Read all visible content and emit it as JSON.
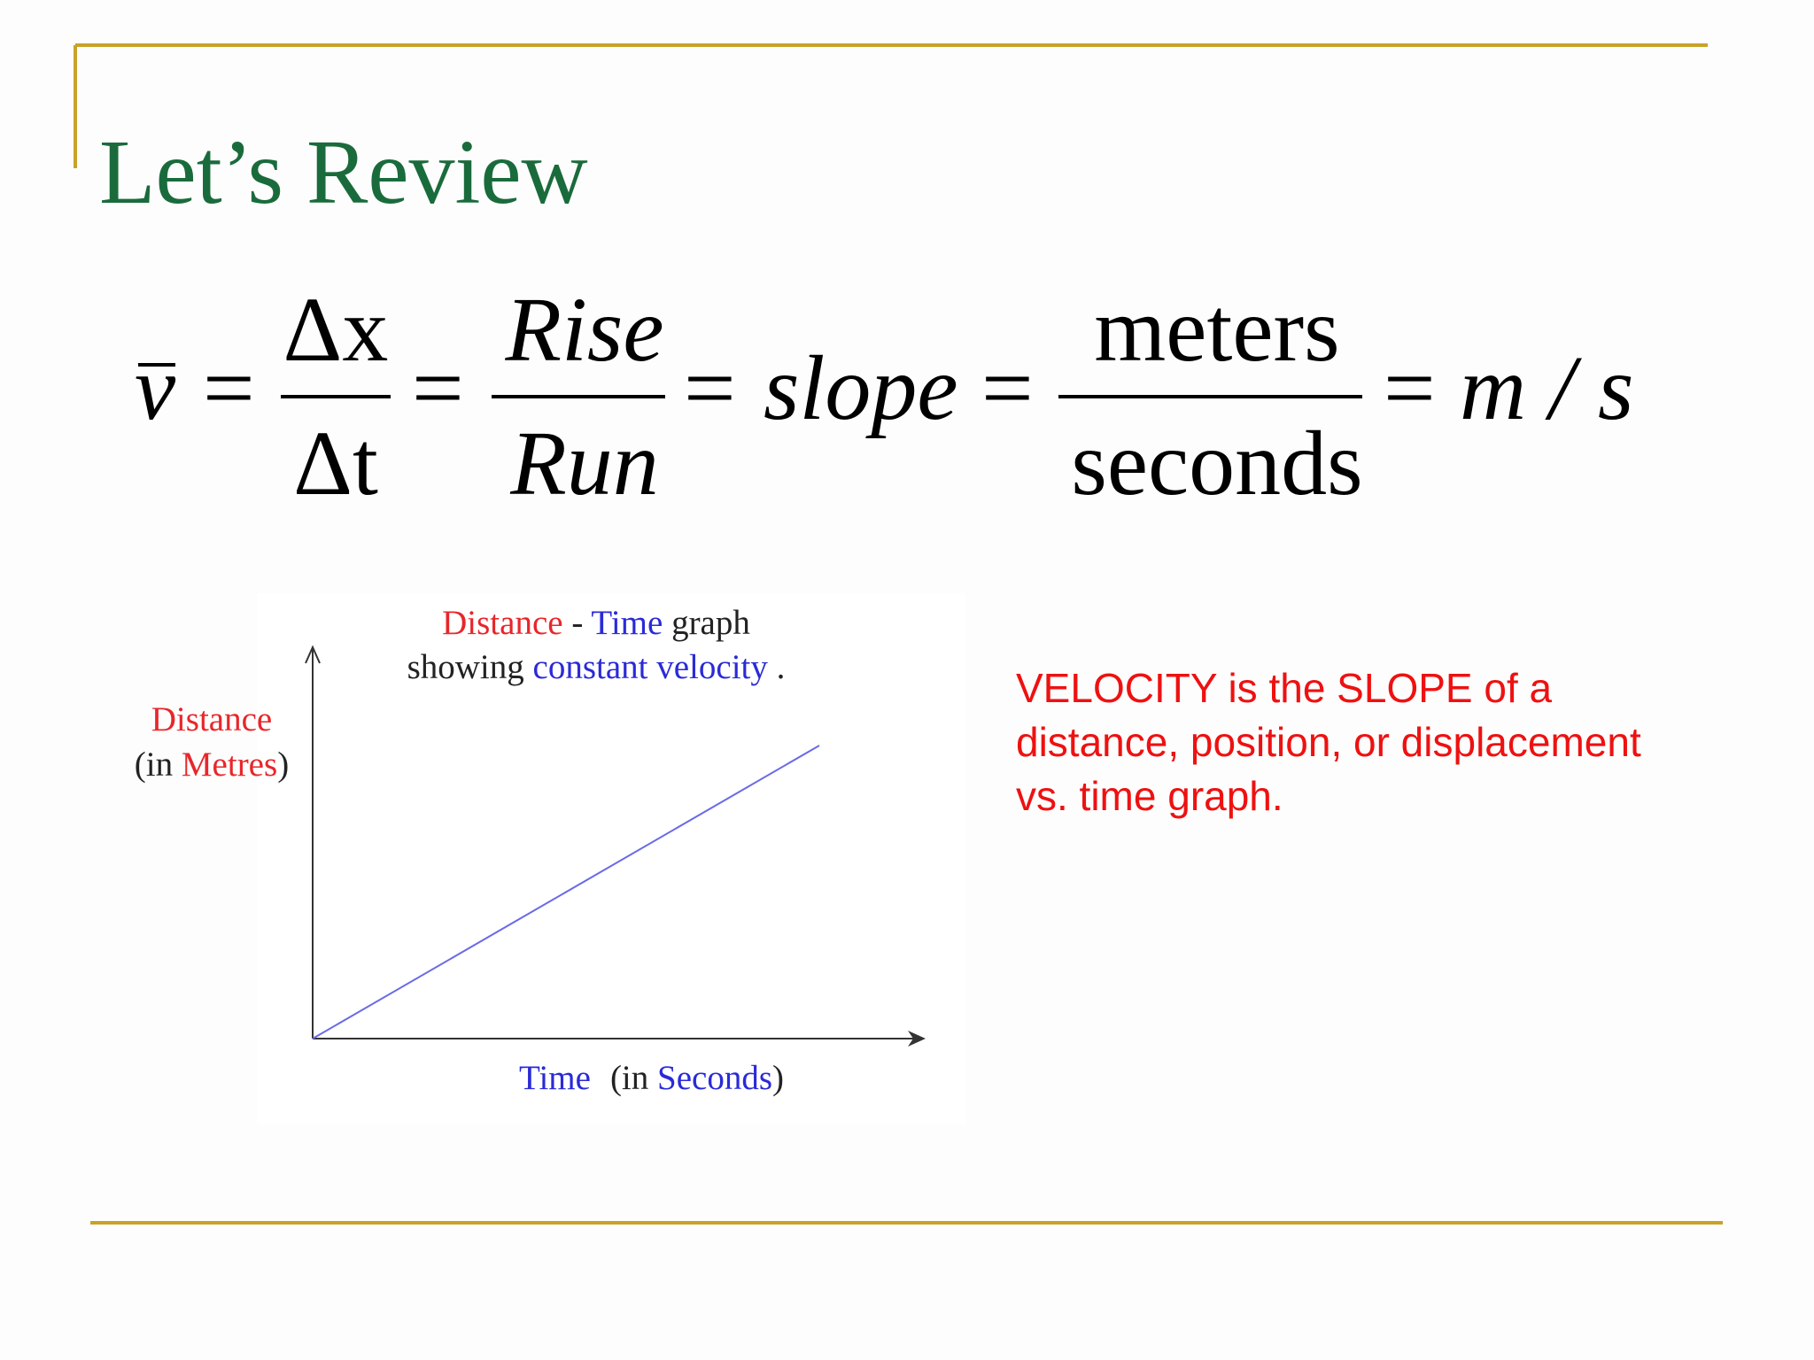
{
  "title": "Let’s Review",
  "equation": {
    "lhs": "v",
    "eq": "=",
    "frac1": {
      "num": "Δx",
      "den": "Δt"
    },
    "frac2": {
      "num": "Rise",
      "den": "Run"
    },
    "slope": "slope",
    "frac3": {
      "num": "meters",
      "den": "seconds"
    },
    "units": "m / s"
  },
  "graph": {
    "title": {
      "line1": [
        "Distance",
        "-",
        "Time",
        "graph"
      ],
      "line2": [
        "showing",
        "constant velocity",
        "."
      ]
    },
    "y_label": {
      "line1": "Distance",
      "line2": [
        "(in",
        "Metres",
        ")"
      ]
    },
    "x_label": [
      "Time",
      "(in",
      "Seconds",
      ")"
    ]
  },
  "note": [
    "VELOCITY is the SLOPE of a",
    "distance, position, or displacement",
    "vs. time graph."
  ]
}
